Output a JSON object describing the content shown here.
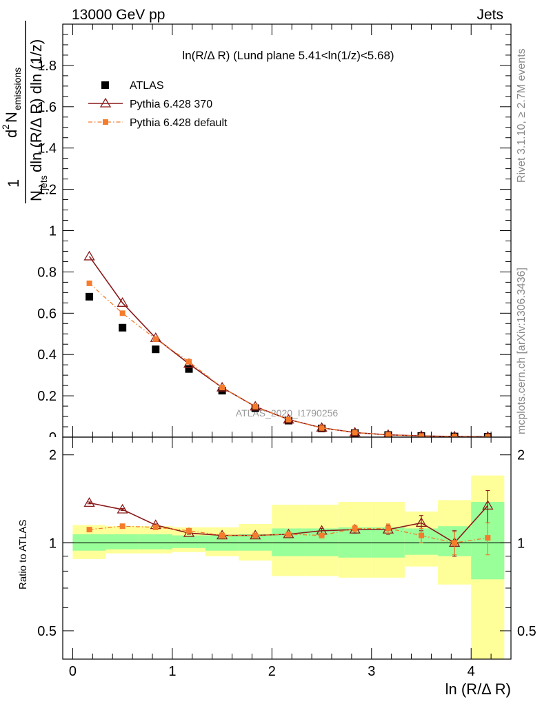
{
  "header": {
    "left": "13000 GeV pp",
    "right": "Jets"
  },
  "sidebar": {
    "rivet": "Rivet 3.1.10, ≥ 2.7M events",
    "mcplots": "mcplots.cern.ch [arXiv:1306.3436]"
  },
  "plot_title": "ln(R/Δ R) (Lund plane 5.41<ln(1/z)<5.68)",
  "watermark": "ATLAS_2020_I1790256",
  "axes": {
    "xlabel": "ln (R/Δ R)",
    "ylabel_main_pieces": [
      "1",
      "N",
      "jets",
      "dln (R/Δ R) dln (1/z)",
      "d",
      "2",
      "N",
      "emissions"
    ],
    "ylabel_ratio": "Ratio to ATLAS"
  },
  "legend": {
    "atlas": "ATLAS",
    "py370": "Pythia 6.428 370",
    "pydef": "Pythia 6.428 default"
  },
  "colors": {
    "atlas": "#000000",
    "py370": "#8b1a1a",
    "pydef": "#f47c2c",
    "band_inner": "#99ff99",
    "band_outer": "#ffff99"
  },
  "chart_data": [
    {
      "type": "scatter",
      "panel": "main",
      "xlim": [
        -0.1,
        4.4
      ],
      "ylim": [
        0,
        2.0
      ],
      "xticks": [
        0,
        1,
        2,
        3,
        4
      ],
      "yticks": [
        0.2,
        0.4,
        0.6,
        0.8,
        1,
        1.2,
        1.4,
        1.6,
        1.8
      ],
      "ytick_labels": [
        "0.2",
        "0.4",
        "0.6",
        "0.8",
        "1",
        "1.2",
        "1.4",
        "1.6",
        "1.8"
      ],
      "x": [
        0.167,
        0.5,
        0.833,
        1.167,
        1.5,
        1.833,
        2.167,
        2.5,
        2.833,
        3.167,
        3.5,
        3.833,
        4.167
      ],
      "series": [
        {
          "name": "ATLAS",
          "style": "square",
          "values": [
            0.68,
            0.53,
            0.425,
            0.33,
            0.225,
            0.14,
            0.08,
            0.042,
            0.02,
            0.01,
            0.005,
            0.003,
            0.0015
          ]
        },
        {
          "name": "Pythia 6.428 370",
          "style": "triangle-line",
          "values": [
            0.875,
            0.65,
            0.48,
            0.355,
            0.24,
            0.148,
            0.085,
            0.045,
            0.022,
            0.011,
            0.006,
            0.003,
            0.002
          ]
        },
        {
          "name": "Pythia 6.428 default",
          "style": "dot-dashdot",
          "values": [
            0.745,
            0.6,
            0.475,
            0.365,
            0.24,
            0.148,
            0.085,
            0.044,
            0.022,
            0.011,
            0.0055,
            0.003,
            0.0015
          ]
        }
      ]
    },
    {
      "type": "scatter",
      "panel": "ratio",
      "xlim": [
        -0.1,
        4.4
      ],
      "ylim": [
        0.4,
        2.3
      ],
      "yscale": "log",
      "xticks": [
        0,
        1,
        2,
        3,
        4
      ],
      "yticks": [
        0.5,
        1,
        2
      ],
      "ytick_labels": [
        "0.5",
        "1",
        "2"
      ],
      "x": [
        0.167,
        0.5,
        0.833,
        1.167,
        1.5,
        1.833,
        2.167,
        2.5,
        2.833,
        3.167,
        3.5,
        3.833,
        4.167
      ],
      "bin_edges": [
        0,
        0.333,
        0.667,
        1.0,
        1.333,
        1.667,
        2.0,
        2.333,
        2.667,
        3.0,
        3.333,
        3.667,
        4.0,
        4.333
      ],
      "band_inner": {
        "lo": [
          0.94,
          0.95,
          0.95,
          0.96,
          0.94,
          0.94,
          0.9,
          0.9,
          0.89,
          0.89,
          0.91,
          0.9,
          0.75
        ],
        "hi": [
          1.07,
          1.07,
          1.07,
          1.06,
          1.06,
          1.07,
          1.12,
          1.12,
          1.13,
          1.13,
          1.12,
          1.14,
          1.38
        ]
      },
      "band_outer": {
        "lo": [
          0.88,
          0.92,
          0.92,
          0.93,
          0.9,
          0.87,
          0.77,
          0.77,
          0.76,
          0.76,
          0.83,
          0.72,
          0.37
        ]
      },
      "band_outer_hi": [
        1.15,
        1.14,
        1.14,
        1.13,
        1.13,
        1.16,
        1.35,
        1.35,
        1.38,
        1.38,
        1.28,
        1.4,
        1.7
      ],
      "series": [
        {
          "name": "Pythia 6.428 370",
          "values": [
            1.37,
            1.3,
            1.15,
            1.08,
            1.06,
            1.06,
            1.07,
            1.1,
            1.11,
            1.11,
            1.17,
            1.0,
            1.34
          ],
          "err": [
            0.01,
            0.01,
            0.01,
            0.01,
            0.01,
            0.01,
            0.01,
            0.02,
            0.03,
            0.04,
            0.07,
            0.1,
            0.17
          ]
        },
        {
          "name": "Pythia 6.428 default",
          "values": [
            1.11,
            1.14,
            1.13,
            1.1,
            1.06,
            1.06,
            1.07,
            1.06,
            1.12,
            1.12,
            1.06,
            1.0,
            1.04
          ],
          "err": [
            0.01,
            0.01,
            0.01,
            0.01,
            0.01,
            0.01,
            0.01,
            0.02,
            0.03,
            0.04,
            0.06,
            0.09,
            0.13
          ]
        }
      ]
    }
  ]
}
